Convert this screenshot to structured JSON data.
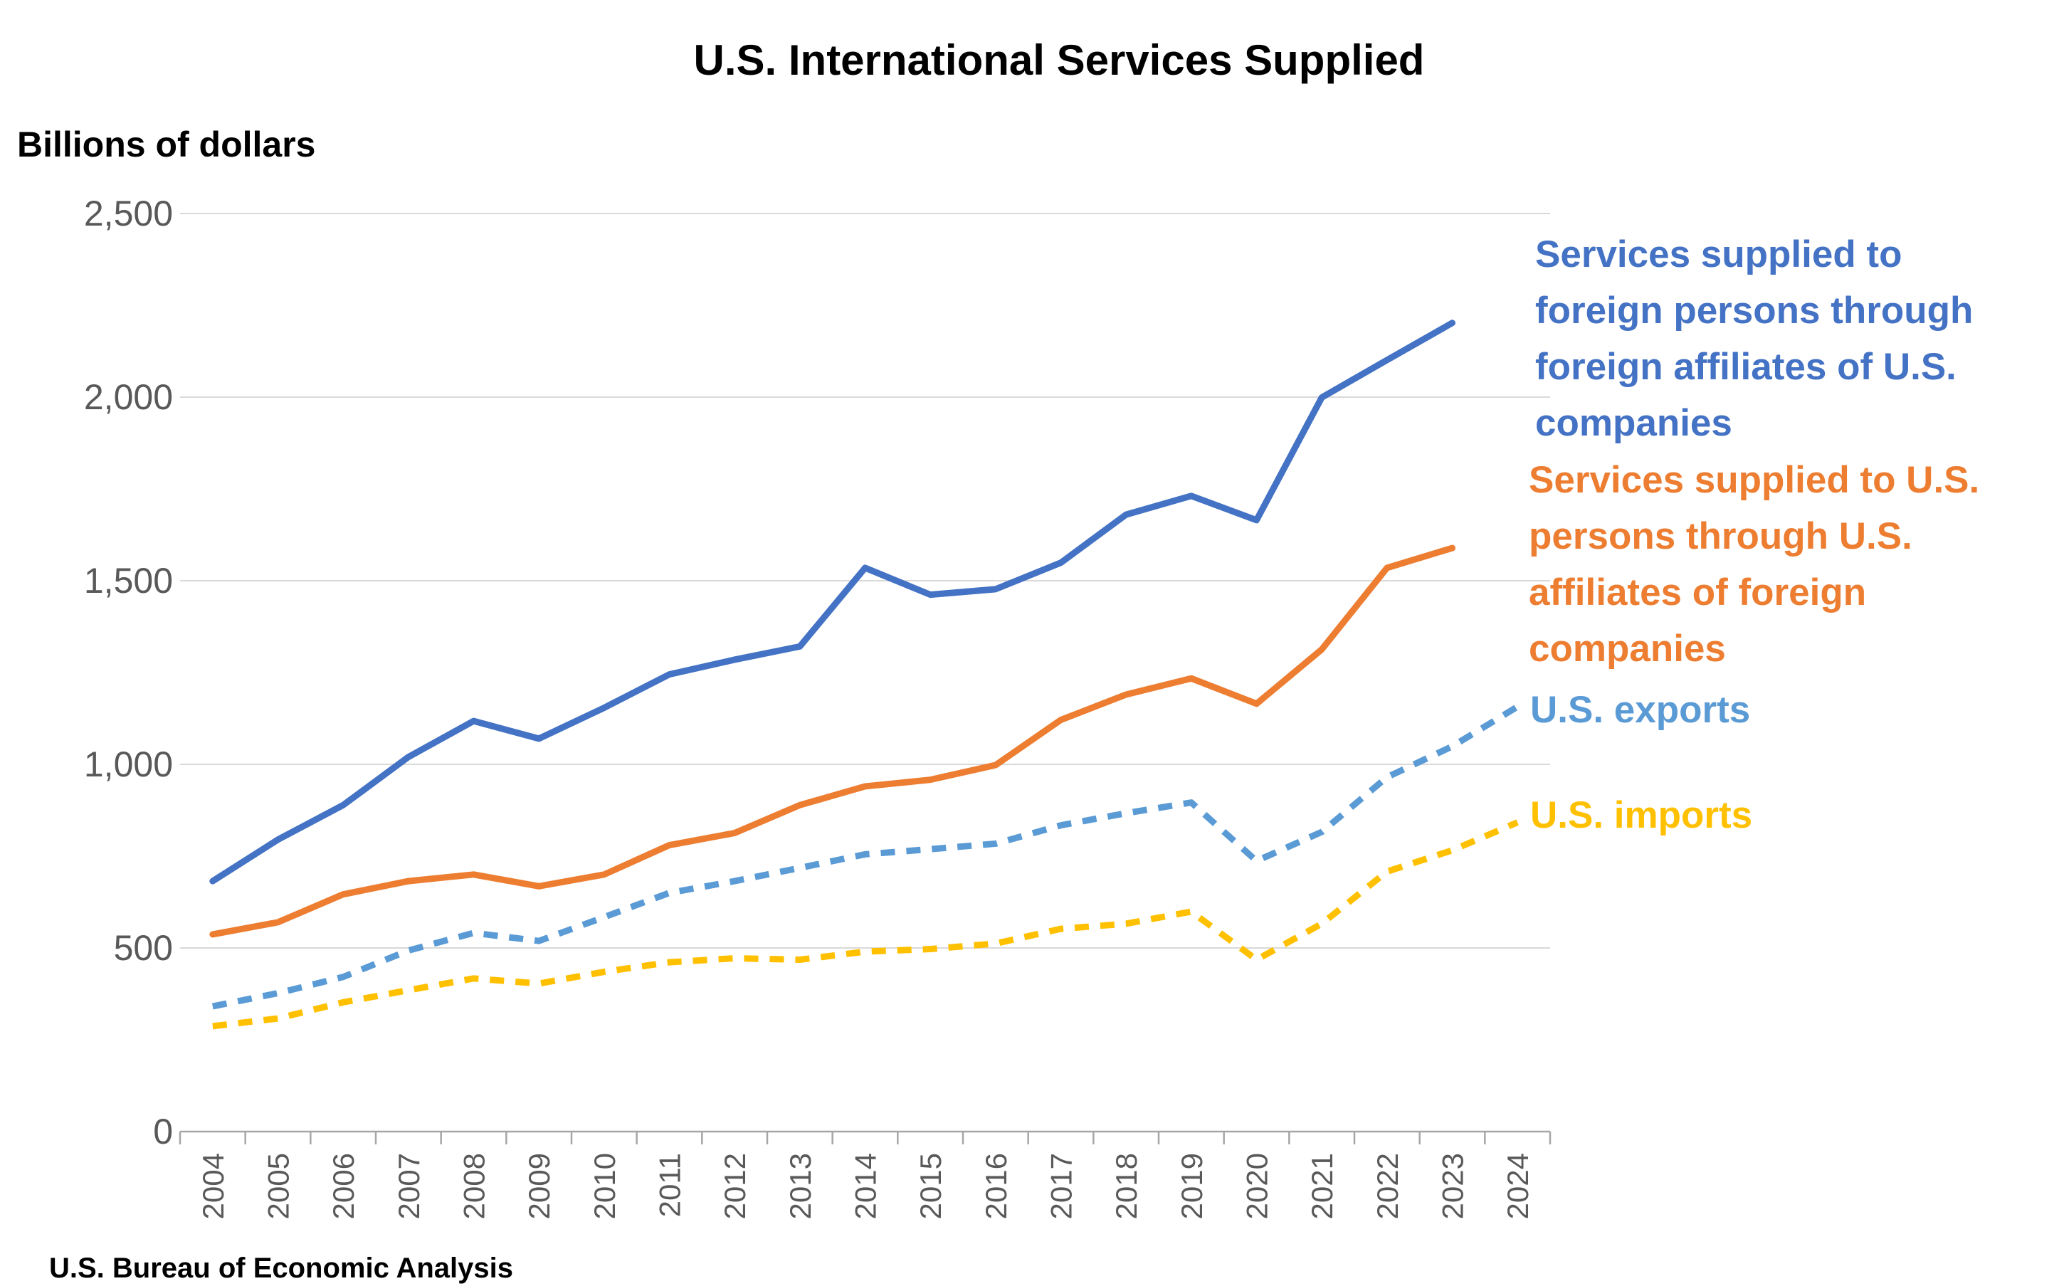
{
  "chart_data": {
    "type": "line",
    "title": "U.S. International Services Supplied",
    "ylabel": "Billions of dollars",
    "xlabel": "",
    "ylim": [
      0,
      2500
    ],
    "yticks": [
      "0",
      "500",
      "1,000",
      "1,500",
      "2,000",
      "2,500"
    ],
    "ytick_values": [
      0,
      500,
      1000,
      1500,
      2000,
      2500
    ],
    "grid": "horizontal",
    "legend": "right, inline labels",
    "categories": [
      "2004",
      "2005",
      "2006",
      "2007",
      "2008",
      "2009",
      "2010",
      "2011",
      "2012",
      "2013",
      "2014",
      "2015",
      "2016",
      "2017",
      "2018",
      "2019",
      "2020",
      "2021",
      "2022",
      "2023",
      "2024"
    ],
    "series": [
      {
        "name": "Services supplied to foreign persons through foreign affiliates of U.S. companies",
        "label_lines": [
          "Services supplied to",
          "foreign persons through",
          "foreign affiliates of U.S.",
          "companies"
        ],
        "color": "#4472C4",
        "style": "solid",
        "values": [
          682,
          795,
          889,
          1020,
          1118,
          1070,
          1154,
          1245,
          1285,
          1321,
          1535,
          1462,
          1477,
          1549,
          1680,
          1731,
          1665,
          1999,
          2101,
          2202,
          null
        ]
      },
      {
        "name": "Services supplied to U.S. persons through U.S. affiliates of foreign companies",
        "label_lines": [
          "Services supplied to U.S.",
          "persons through U.S.",
          "affiliates of foreign",
          "companies"
        ],
        "color": "#ED7D31",
        "style": "solid",
        "values": [
          537,
          570,
          646,
          682,
          700,
          668,
          700,
          780,
          813,
          889,
          940,
          958,
          998,
          1121,
          1190,
          1234,
          1165,
          1313,
          1535,
          1589,
          null
        ]
      },
      {
        "name": "U.S. exports",
        "label_lines": [
          "U.S. exports"
        ],
        "color": "#5B9BD5",
        "style": "dashed",
        "values": [
          341,
          377,
          421,
          493,
          541,
          519,
          584,
          650,
          682,
          718,
          755,
          769,
          784,
          834,
          867,
          896,
          737,
          816,
          965,
          1049,
          1157
        ]
      },
      {
        "name": "U.S. imports",
        "label_lines": [
          "U.S. imports"
        ],
        "color": "#FFC000",
        "style": "dashed",
        "values": [
          287,
          308,
          352,
          385,
          417,
          403,
          435,
          461,
          472,
          468,
          490,
          497,
          512,
          552,
          566,
          599,
          468,
          566,
          708,
          766,
          842
        ]
      }
    ]
  },
  "source": "U.S. Bureau of Economic Analysis"
}
